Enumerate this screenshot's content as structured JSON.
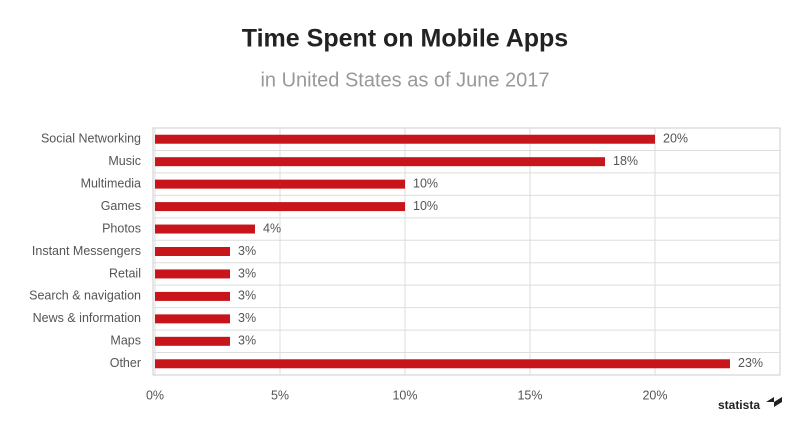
{
  "chart_data": {
    "type": "bar",
    "orientation": "horizontal",
    "title": "Time Spent on Mobile Apps",
    "subtitle": "in United States as of June 2017",
    "categories": [
      "Social Networking",
      "Music",
      "Multimedia",
      "Games",
      "Photos",
      "Instant Messengers",
      "Retail",
      "Search & navigation",
      "News & information",
      "Maps",
      "Other"
    ],
    "values": [
      20,
      18,
      10,
      10,
      4,
      3,
      3,
      3,
      3,
      3,
      23
    ],
    "value_labels": [
      "20%",
      "18%",
      "10%",
      "10%",
      "4%",
      "3%",
      "3%",
      "3%",
      "3%",
      "3%",
      "23%"
    ],
    "color": "#c8151b",
    "xlim": [
      0,
      25
    ],
    "xticks": [
      {
        "value": 0,
        "label": "0%"
      },
      {
        "value": 5,
        "label": "5%"
      },
      {
        "value": 10,
        "label": "10%"
      },
      {
        "value": 15,
        "label": "15%"
      },
      {
        "value": 20,
        "label": "20%"
      }
    ],
    "grid": true,
    "branding": "statista"
  }
}
